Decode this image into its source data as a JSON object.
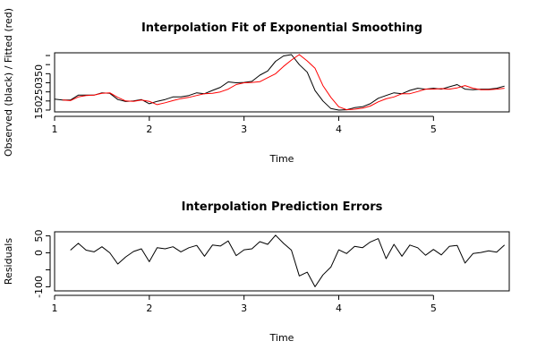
{
  "chart_data": [
    {
      "type": "line",
      "title": "Interpolation Fit of Exponential Smoothing",
      "xlabel": "Time",
      "ylabel": "Observed (black) / Fitted (red)",
      "xlim": [
        1,
        5.8
      ],
      "ylim": [
        140,
        465
      ],
      "xticks": [
        "1",
        "2",
        "3",
        "4",
        "5"
      ],
      "yticks": [
        "150",
        "250",
        "350"
      ],
      "series": [
        {
          "color": "#000000",
          "x": [
            1.0,
            1.083,
            1.167,
            1.25,
            1.333,
            1.417,
            1.5,
            1.583,
            1.667,
            1.75,
            1.833,
            1.917,
            2.0,
            2.083,
            2.167,
            2.25,
            2.333,
            2.417,
            2.5,
            2.583,
            2.667,
            2.75,
            2.833,
            2.917,
            3.0,
            3.083,
            3.167,
            3.25,
            3.333,
            3.417,
            3.5,
            3.583,
            3.667,
            3.75,
            3.833,
            3.917,
            4.0,
            4.083,
            4.167,
            4.25,
            4.333,
            4.417,
            4.5,
            4.583,
            4.667,
            4.75,
            4.833,
            4.917,
            5.0,
            5.083,
            5.167,
            5.25,
            5.333,
            5.417,
            5.5,
            5.583,
            5.667,
            5.75
          ],
          "y": [
            210,
            205,
            205,
            232,
            232,
            232,
            245,
            242,
            208,
            197,
            200,
            208,
            185,
            198,
            208,
            222,
            222,
            230,
            245,
            240,
            258,
            275,
            305,
            300,
            302,
            308,
            342,
            365,
            418,
            448,
            455,
            400,
            358,
            257,
            200,
            158,
            150,
            152,
            163,
            168,
            185,
            215,
            230,
            245,
            240,
            258,
            270,
            265,
            270,
            265,
            278,
            290,
            265,
            262,
            265,
            265,
            270,
            282
          ]
        },
        {
          "color": "#ff0000",
          "x": [
            1.083,
            1.167,
            1.25,
            1.333,
            1.417,
            1.5,
            1.583,
            1.667,
            1.75,
            1.833,
            1.917,
            2.0,
            2.083,
            2.167,
            2.25,
            2.333,
            2.417,
            2.5,
            2.583,
            2.667,
            2.75,
            2.833,
            2.917,
            3.0,
            3.083,
            3.167,
            3.25,
            3.333,
            3.417,
            3.5,
            3.583,
            3.667,
            3.75,
            3.833,
            3.917,
            4.0,
            4.083,
            4.167,
            4.25,
            4.333,
            4.417,
            4.5,
            4.583,
            4.667,
            4.75,
            4.833,
            4.917,
            5.0,
            5.083,
            5.167,
            5.25,
            5.333,
            5.417,
            5.5,
            5.583,
            5.667,
            5.75
          ],
          "y": [
            205,
            202,
            222,
            230,
            232,
            242,
            245,
            220,
            200,
            198,
            205,
            198,
            180,
            190,
            202,
            213,
            220,
            230,
            240,
            242,
            250,
            265,
            290,
            300,
            302,
            306,
            328,
            350,
            390,
            425,
            455,
            420,
            380,
            285,
            220,
            168,
            152,
            155,
            160,
            172,
            195,
            212,
            222,
            240,
            240,
            252,
            265,
            265,
            268,
            265,
            272,
            285,
            270,
            262,
            262,
            265,
            270
          ]
        }
      ]
    },
    {
      "type": "line",
      "title": "Interpolation Prediction Errors",
      "xlabel": "Time",
      "ylabel": "Residuals",
      "xlim": [
        1,
        5.8
      ],
      "ylim": [
        -112,
        62
      ],
      "xticks": [
        "1",
        "2",
        "3",
        "4",
        "5"
      ],
      "yticks": [
        "50",
        "0",
        "-100"
      ],
      "series": [
        {
          "color": "#000000",
          "x": [
            1.167,
            1.25,
            1.333,
            1.417,
            1.5,
            1.583,
            1.667,
            1.75,
            1.833,
            1.917,
            2.0,
            2.083,
            2.167,
            2.25,
            2.333,
            2.417,
            2.5,
            2.583,
            2.667,
            2.75,
            2.833,
            2.917,
            3.0,
            3.083,
            3.167,
            3.25,
            3.333,
            3.417,
            3.5,
            3.583,
            3.667,
            3.75,
            3.833,
            3.917,
            4.0,
            4.083,
            4.167,
            4.25,
            4.333,
            4.417,
            4.5,
            4.583,
            4.667,
            4.75,
            4.833,
            4.917,
            5.0,
            5.083,
            5.167,
            5.25,
            5.333,
            5.417,
            5.5,
            5.583,
            5.667,
            5.75
          ],
          "y": [
            8,
            28,
            8,
            3,
            18,
            0,
            -33,
            -12,
            4,
            12,
            -26,
            15,
            12,
            18,
            3,
            15,
            22,
            -10,
            23,
            20,
            35,
            -8,
            9,
            12,
            33,
            25,
            52,
            28,
            8,
            -68,
            -57,
            -100,
            -65,
            -42,
            9,
            -2,
            19,
            15,
            32,
            42,
            -17,
            25,
            -10,
            23,
            15,
            -7,
            10,
            -6,
            19,
            22,
            -30,
            -2,
            1,
            6,
            2,
            23
          ]
        }
      ]
    }
  ]
}
